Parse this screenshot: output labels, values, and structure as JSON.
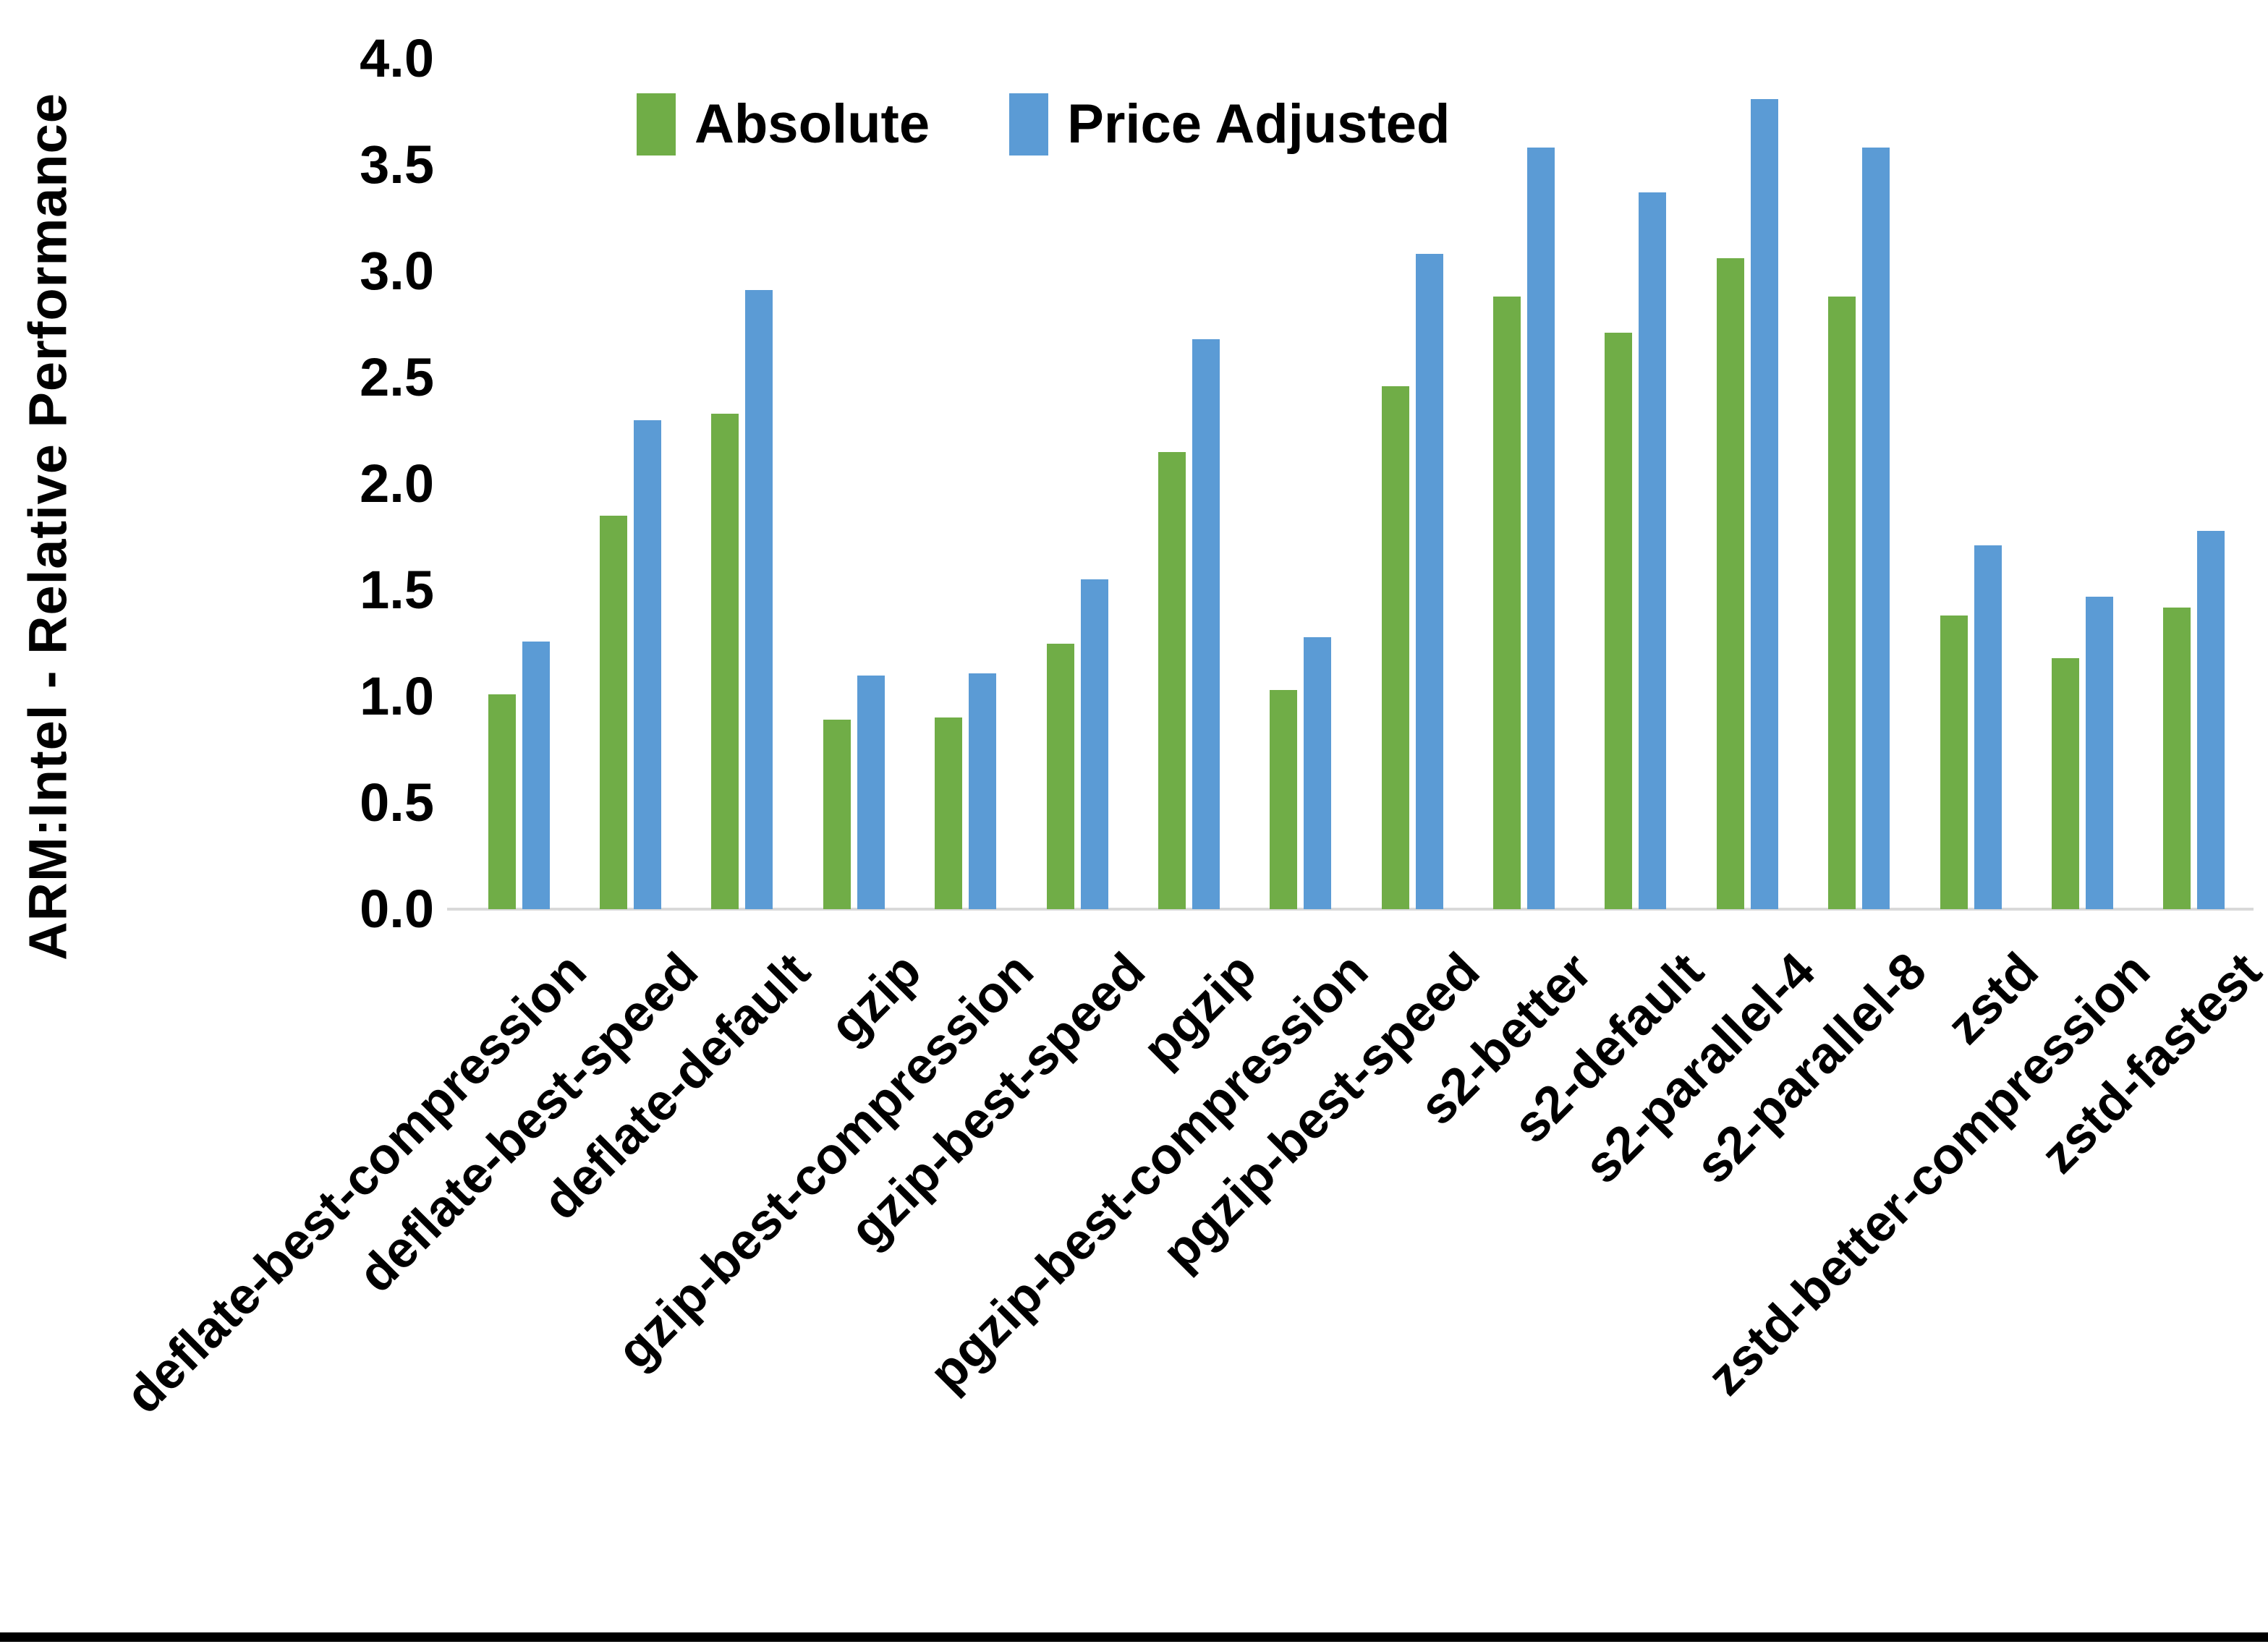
{
  "chart_data": {
    "type": "bar",
    "title": "",
    "xlabel": "",
    "ylabel": "ARM:Intel - Relative Performance",
    "ylim": [
      0.0,
      4.0
    ],
    "ytick_step": 0.5,
    "ytick_labels": [
      "0.0",
      "0.5",
      "1.0",
      "1.5",
      "2.0",
      "2.5",
      "3.0",
      "3.5",
      "4.0"
    ],
    "grid": false,
    "legend_position": "top-center",
    "background_color": "#ffffff",
    "axis_line_color": "#d9d9d9",
    "categories": [
      "deflate-best-compression",
      "deflate-best-speed",
      "deflate-default",
      "gzip",
      "gzip-best-compression",
      "gzip-best-speed",
      "pgzip",
      "pgzip-best-compression",
      "pgzip-best-speed",
      "s2-better",
      "s2-default",
      "s2-parallel-4",
      "s2-parallel-8",
      "zstd",
      "zstd-better-compression",
      "zstd-fastest"
    ],
    "series": [
      {
        "name": "Absolute",
        "color": "#70AD47",
        "values": [
          1.01,
          1.85,
          2.33,
          0.89,
          0.9,
          1.25,
          2.15,
          1.03,
          2.46,
          2.88,
          2.71,
          3.06,
          2.88,
          1.38,
          1.18,
          1.42
        ]
      },
      {
        "name": "Price Adjusted",
        "color": "#5B9BD5",
        "values": [
          1.26,
          2.3,
          2.91,
          1.1,
          1.11,
          1.55,
          2.68,
          1.28,
          3.08,
          3.58,
          3.37,
          3.81,
          3.58,
          1.71,
          1.47,
          1.78
        ]
      }
    ]
  }
}
